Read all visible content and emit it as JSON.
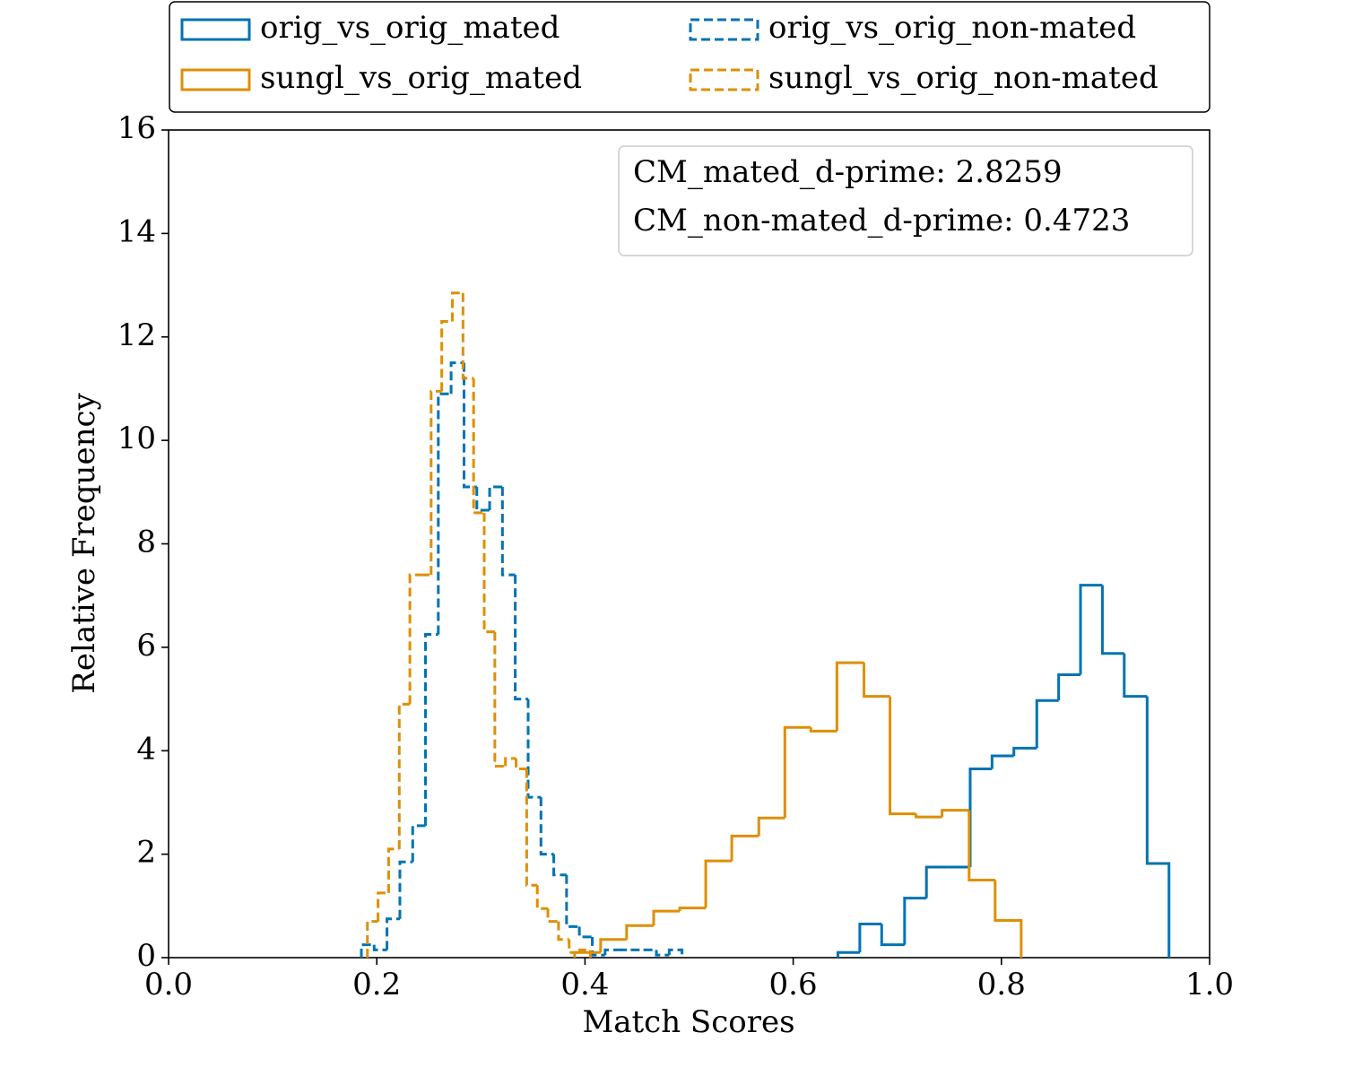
{
  "chart_data": {
    "type": "step-histogram",
    "xlabel": "Match Scores",
    "ylabel": "Relative Frequency",
    "xlim": [
      0,
      1
    ],
    "ylim": [
      0,
      16
    ],
    "xticks": [
      {
        "value": 0,
        "label": "0.0"
      },
      0.2,
      0.4,
      0.6,
      0.8,
      {
        "value": 1,
        "label": "1.0"
      }
    ],
    "yticks": [
      0,
      2,
      4,
      6,
      8,
      10,
      12,
      14,
      16
    ],
    "legend": "top",
    "annotations": [
      "CM_mated_d-prime: 2.8259",
      "CM_non-mated_d-prime: 0.4723"
    ],
    "series": [
      {
        "name": "orig_vs_orig_mated",
        "color": "#0173b2",
        "linestyle": "solid",
        "bins": [
          0.643,
          0.664,
          0.685,
          0.707,
          0.728,
          0.749,
          0.77,
          0.791,
          0.812,
          0.834,
          0.855,
          0.876,
          0.897,
          0.918,
          0.94,
          0.961
        ],
        "values": [
          0.1,
          0.65,
          0.25,
          1.15,
          1.75,
          1.75,
          3.65,
          3.9,
          4.05,
          4.97,
          5.47,
          7.2,
          5.88,
          5.05,
          1.82
        ]
      },
      {
        "name": "orig_vs_orig_non-mated",
        "color": "#0173b2",
        "linestyle": "dashed",
        "bins": [
          0.1852,
          0.1975,
          0.2098,
          0.2222,
          0.2345,
          0.2468,
          0.2591,
          0.2714,
          0.2838,
          0.2961,
          0.3084,
          0.3207,
          0.333,
          0.3454,
          0.3577,
          0.37,
          0.3823,
          0.3946,
          0.407,
          0.4193,
          0.4316,
          0.4439,
          0.4562,
          0.4686,
          0.4809,
          0.4932
        ],
        "values": [
          0.25,
          0.15,
          0.75,
          1.85,
          2.55,
          6.25,
          10.9,
          11.5,
          9.1,
          8.65,
          9.1,
          7.4,
          5.0,
          3.1,
          2.0,
          1.6,
          0.6,
          0.4,
          0.05,
          0.15,
          0.15,
          0.15,
          0.15,
          0.05,
          0.15
        ]
      },
      {
        "name": "sungl_vs_orig_mated",
        "color": "#de8f05",
        "linestyle": "solid",
        "bins": [
          0.39,
          0.415,
          0.44,
          0.466,
          0.491,
          0.516,
          0.541,
          0.567,
          0.592,
          0.617,
          0.642,
          0.668,
          0.693,
          0.718,
          0.743,
          0.769,
          0.794,
          0.819
        ],
        "values": [
          0.1,
          0.35,
          0.62,
          0.9,
          0.96,
          1.87,
          2.35,
          2.7,
          4.45,
          4.38,
          5.7,
          5.05,
          2.78,
          2.72,
          2.85,
          1.5,
          0.72
        ]
      },
      {
        "name": "sungl_vs_orig_non-mated",
        "color": "#de8f05",
        "linestyle": "dashed",
        "bins": [
          0.191,
          0.2012,
          0.2114,
          0.2216,
          0.2318,
          0.242,
          0.2522,
          0.2624,
          0.2726,
          0.2828,
          0.293,
          0.3032,
          0.3134,
          0.3236,
          0.3338,
          0.344,
          0.3542,
          0.3644,
          0.3746,
          0.3848,
          0.395,
          0.4052
        ],
        "values": [
          0.7,
          1.25,
          2.1,
          4.9,
          7.4,
          7.4,
          10.95,
          12.3,
          12.85,
          11.2,
          8.6,
          6.3,
          3.7,
          3.85,
          3.65,
          1.4,
          0.95,
          0.7,
          0.35,
          0.1,
          0.15
        ]
      }
    ]
  }
}
